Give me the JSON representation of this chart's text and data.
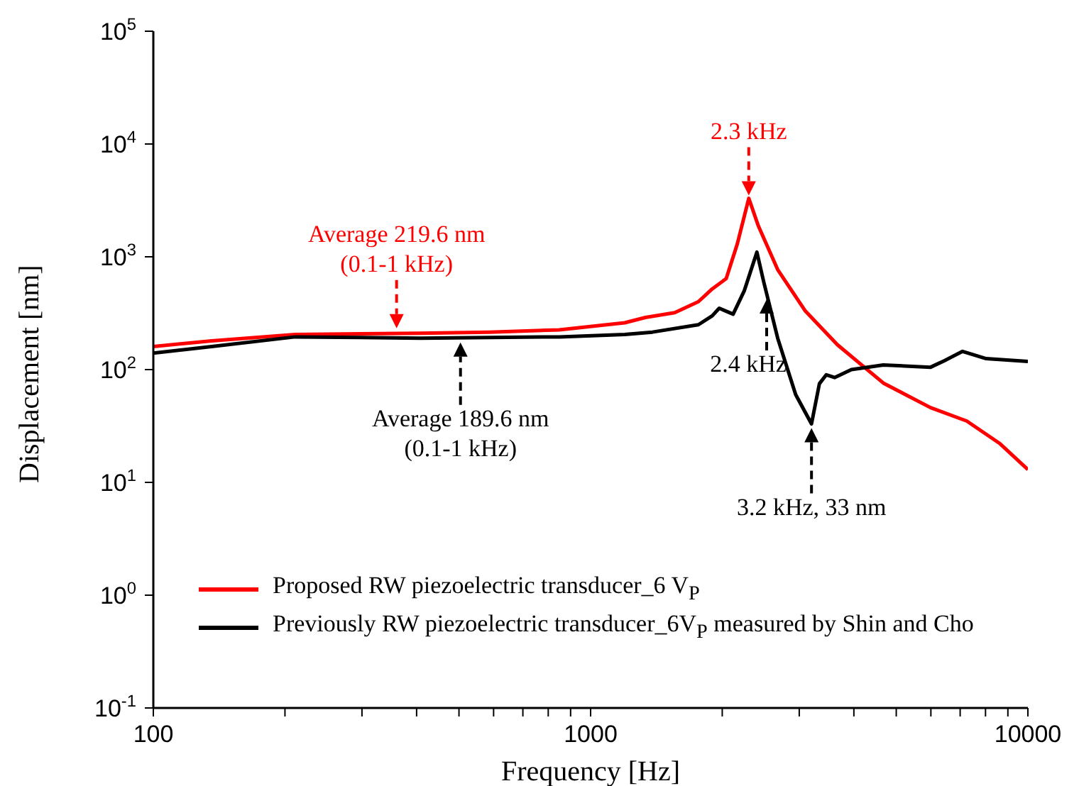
{
  "chart_data": {
    "type": "line",
    "xlabel": "Frequency [Hz]",
    "ylabel": "Displacement [nm]",
    "log": "xy",
    "xlim": [
      100,
      10000
    ],
    "ylim": [
      0.1,
      100000
    ],
    "xticks": [
      100,
      {
        "value": 200,
        "label": null
      },
      {
        "value": 300,
        "label": null
      },
      {
        "value": 400,
        "label": null
      },
      {
        "value": 500,
        "label": null
      },
      {
        "value": 600,
        "label": null
      },
      {
        "value": 700,
        "label": null
      },
      {
        "value": 800,
        "label": null
      },
      {
        "value": 900,
        "label": null
      },
      1000,
      {
        "value": 2000,
        "label": null
      },
      {
        "value": 3000,
        "label": null
      },
      {
        "value": 4000,
        "label": null
      },
      {
        "value": 5000,
        "label": null
      },
      {
        "value": 6000,
        "label": null
      },
      {
        "value": 7000,
        "label": null
      },
      {
        "value": 8000,
        "label": null
      },
      {
        "value": 9000,
        "label": null
      },
      10000
    ],
    "yticks": [
      {
        "value": 0.1,
        "label": "10$^{-1}$"
      },
      {
        "value": 1,
        "label": "10$^{0}$"
      },
      {
        "value": 10,
        "label": "10$^{1}$"
      },
      {
        "value": 100,
        "label": "10$^{2}$"
      },
      {
        "value": 1000,
        "label": "10$^{3}$"
      },
      {
        "value": 10000,
        "label": "10$^{4}$"
      },
      {
        "value": 100000,
        "label": "10$^{5}$"
      }
    ],
    "grid": false,
    "legend": "bottom left",
    "marker": "none",
    "line_style": "solid",
    "series": [
      {
        "name": "Proposed RW piezoelectric transducer_6 V$_{P}$",
        "color": "#ff0000",
        "x": [
          100,
          136,
          211,
          408,
          588,
          848,
          1197,
          1335,
          1557,
          1764,
          1898,
          2042,
          2165,
          2300,
          2416,
          2678,
          3099,
          3668,
          4670,
          5990,
          7247,
          8639,
          10000
        ],
        "values": [
          160,
          180,
          205,
          210,
          215,
          225,
          260,
          290,
          320,
          400,
          520,
          640,
          1300,
          3300,
          1900,
          770,
          330,
          166,
          76,
          46,
          35,
          22,
          13
        ]
      },
      {
        "name": "Previously RW piezoelectric transducer_6V$_{P}$ measured by Shin and Cho",
        "color": "#000000",
        "x": [
          100,
          136,
          211,
          408,
          848,
          1197,
          1385,
          1764,
          1898,
          1968,
          2118,
          2246,
          2400,
          2488,
          2678,
          2944,
          3200,
          3336,
          3459,
          3614,
          3948,
          4670,
          5990,
          6444,
          7090,
          8030,
          10000
        ],
        "values": [
          140,
          160,
          195,
          190,
          195,
          205,
          215,
          250,
          300,
          350,
          310,
          500,
          1100,
          600,
          190,
          60,
          33,
          75,
          90,
          85,
          100,
          110,
          105,
          120,
          145,
          125,
          118
        ]
      }
    ],
    "annotations": [
      {
        "text": "2.3 kHz",
        "x": 2300,
        "y": 3300
      },
      {
        "text": "Average 219.6 nm\n(0.1-1 kHz)",
        "x": 360,
        "y": 219.6
      },
      {
        "text": "Average 189.6 nm\n(0.1-1 kHz)",
        "x": 504,
        "y": 189.6
      },
      "2.4 kHz",
      {
        "text": "3.2 kHz, 33 nm",
        "x": 3200,
        "y": 33
      }
    ]
  }
}
